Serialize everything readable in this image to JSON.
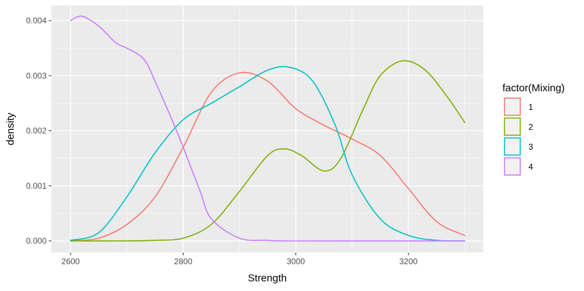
{
  "chart_data": {
    "type": "line",
    "title": "",
    "xlabel": "Strength",
    "ylabel": "density",
    "xlim": [
      2600,
      3300
    ],
    "ylim": [
      0,
      0.0041
    ],
    "x_ticks": [
      2600,
      2800,
      3000,
      3200
    ],
    "y_ticks": [
      0,
      0.001,
      0.002,
      0.003,
      0.004
    ],
    "x_tick_labels": [
      "2600",
      "2800",
      "3000",
      "3200"
    ],
    "y_tick_labels": [
      "0.000",
      "0.001",
      "0.002",
      "0.003",
      "0.004"
    ],
    "grid": true,
    "legend_position": "right",
    "legend_title": "factor(Mixing)",
    "panel_background": "#ebebeb",
    "series": [
      {
        "name": "1",
        "color": "#F8766D",
        "x": [
          2600,
          2650,
          2700,
          2750,
          2800,
          2850,
          2900,
          2950,
          3000,
          3050,
          3100,
          3150,
          3200,
          3250,
          3300
        ],
        "y": [
          0.0,
          5e-05,
          0.0003,
          0.0008,
          0.0017,
          0.0027,
          0.00305,
          0.0029,
          0.0024,
          0.0021,
          0.00185,
          0.00155,
          0.00095,
          0.00035,
          0.0001
        ]
      },
      {
        "name": "2",
        "color": "#7CAE00",
        "x": [
          2600,
          2700,
          2750,
          2800,
          2850,
          2900,
          2950,
          2980,
          3010,
          3050,
          3080,
          3120,
          3150,
          3190,
          3230,
          3270,
          3300
        ],
        "y": [
          0.0,
          0.0,
          1e-05,
          5e-05,
          0.0003,
          0.0009,
          0.00155,
          0.00167,
          0.00155,
          0.00127,
          0.0015,
          0.0024,
          0.003,
          0.00327,
          0.0031,
          0.0026,
          0.00215
        ]
      },
      {
        "name": "3",
        "color": "#00BFC4",
        "x": [
          2600,
          2650,
          2700,
          2750,
          2800,
          2850,
          2900,
          2950,
          2990,
          3030,
          3070,
          3100,
          3150,
          3200,
          3250,
          3300
        ],
        "y": [
          1e-05,
          0.00015,
          0.0008,
          0.0016,
          0.0022,
          0.0025,
          0.0028,
          0.0031,
          0.00315,
          0.0029,
          0.0021,
          0.0012,
          0.0004,
          0.0001,
          1e-05,
          0.0
        ]
      },
      {
        "name": "4",
        "color": "#C77CFF",
        "x": [
          2600,
          2620,
          2650,
          2680,
          2700,
          2730,
          2750,
          2780,
          2800,
          2830,
          2850,
          2900,
          2950,
          3000,
          3300
        ],
        "y": [
          0.004,
          0.00408,
          0.0039,
          0.0036,
          0.0035,
          0.0033,
          0.0029,
          0.0022,
          0.0017,
          0.0009,
          0.0004,
          5e-05,
          1e-05,
          0.0,
          0.0
        ]
      }
    ]
  }
}
